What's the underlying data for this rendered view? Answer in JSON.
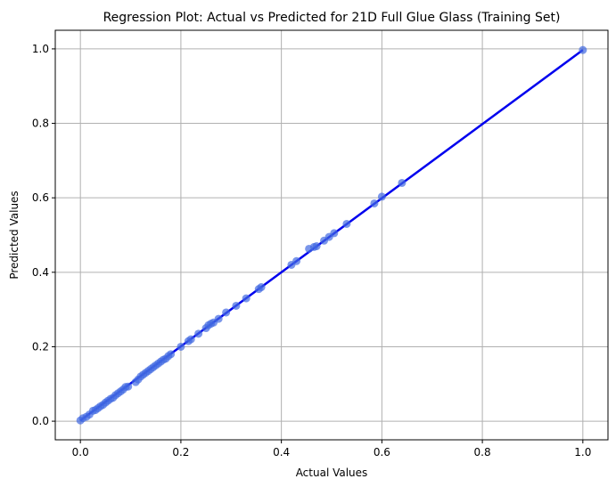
{
  "chart_data": {
    "type": "scatter",
    "title": "Regression Plot: Actual vs Predicted for 21D Full Glue Glass (Training Set)",
    "xlabel": "Actual Values",
    "ylabel": "Predicted Values",
    "xlim": [
      -0.05,
      1.05
    ],
    "ylim": [
      -0.05,
      1.05
    ],
    "x_ticks": [
      0.0,
      0.2,
      0.4,
      0.6,
      0.8,
      1.0
    ],
    "x_tick_labels": [
      "0.0",
      "0.2",
      "0.4",
      "0.6",
      "0.8",
      "1.0"
    ],
    "y_ticks": [
      0.0,
      0.2,
      0.4,
      0.6,
      0.8,
      1.0
    ],
    "y_tick_labels": [
      "0.0",
      "0.2",
      "0.4",
      "0.6",
      "0.8",
      "1.0"
    ],
    "grid": true,
    "point_color": "#4169e1",
    "line_color": "#0000ee",
    "points": [
      [
        0.0,
        0.002
      ],
      [
        0.005,
        0.008
      ],
      [
        0.012,
        0.012
      ],
      [
        0.018,
        0.018
      ],
      [
        0.025,
        0.028
      ],
      [
        0.03,
        0.03
      ],
      [
        0.035,
        0.035
      ],
      [
        0.04,
        0.04
      ],
      [
        0.045,
        0.044
      ],
      [
        0.05,
        0.05
      ],
      [
        0.055,
        0.055
      ],
      [
        0.06,
        0.06
      ],
      [
        0.065,
        0.063
      ],
      [
        0.07,
        0.07
      ],
      [
        0.075,
        0.075
      ],
      [
        0.08,
        0.08
      ],
      [
        0.085,
        0.085
      ],
      [
        0.09,
        0.092
      ],
      [
        0.095,
        0.093
      ],
      [
        0.11,
        0.105
      ],
      [
        0.115,
        0.112
      ],
      [
        0.12,
        0.12
      ],
      [
        0.125,
        0.125
      ],
      [
        0.13,
        0.13
      ],
      [
        0.135,
        0.135
      ],
      [
        0.14,
        0.14
      ],
      [
        0.145,
        0.145
      ],
      [
        0.15,
        0.15
      ],
      [
        0.155,
        0.155
      ],
      [
        0.16,
        0.16
      ],
      [
        0.165,
        0.165
      ],
      [
        0.17,
        0.168
      ],
      [
        0.175,
        0.175
      ],
      [
        0.18,
        0.18
      ],
      [
        0.2,
        0.2
      ],
      [
        0.215,
        0.215
      ],
      [
        0.22,
        0.22
      ],
      [
        0.235,
        0.235
      ],
      [
        0.25,
        0.25
      ],
      [
        0.255,
        0.258
      ],
      [
        0.26,
        0.262
      ],
      [
        0.265,
        0.265
      ],
      [
        0.275,
        0.275
      ],
      [
        0.29,
        0.292
      ],
      [
        0.31,
        0.31
      ],
      [
        0.33,
        0.33
      ],
      [
        0.355,
        0.355
      ],
      [
        0.36,
        0.36
      ],
      [
        0.42,
        0.42
      ],
      [
        0.43,
        0.43
      ],
      [
        0.455,
        0.463
      ],
      [
        0.465,
        0.468
      ],
      [
        0.47,
        0.47
      ],
      [
        0.485,
        0.485
      ],
      [
        0.495,
        0.495
      ],
      [
        0.505,
        0.505
      ],
      [
        0.53,
        0.53
      ],
      [
        0.585,
        0.585
      ],
      [
        0.6,
        0.603
      ],
      [
        0.64,
        0.64
      ],
      [
        1.0,
        0.997
      ]
    ],
    "regression_line": [
      [
        0.0,
        0.002
      ],
      [
        1.0,
        0.997
      ]
    ]
  }
}
